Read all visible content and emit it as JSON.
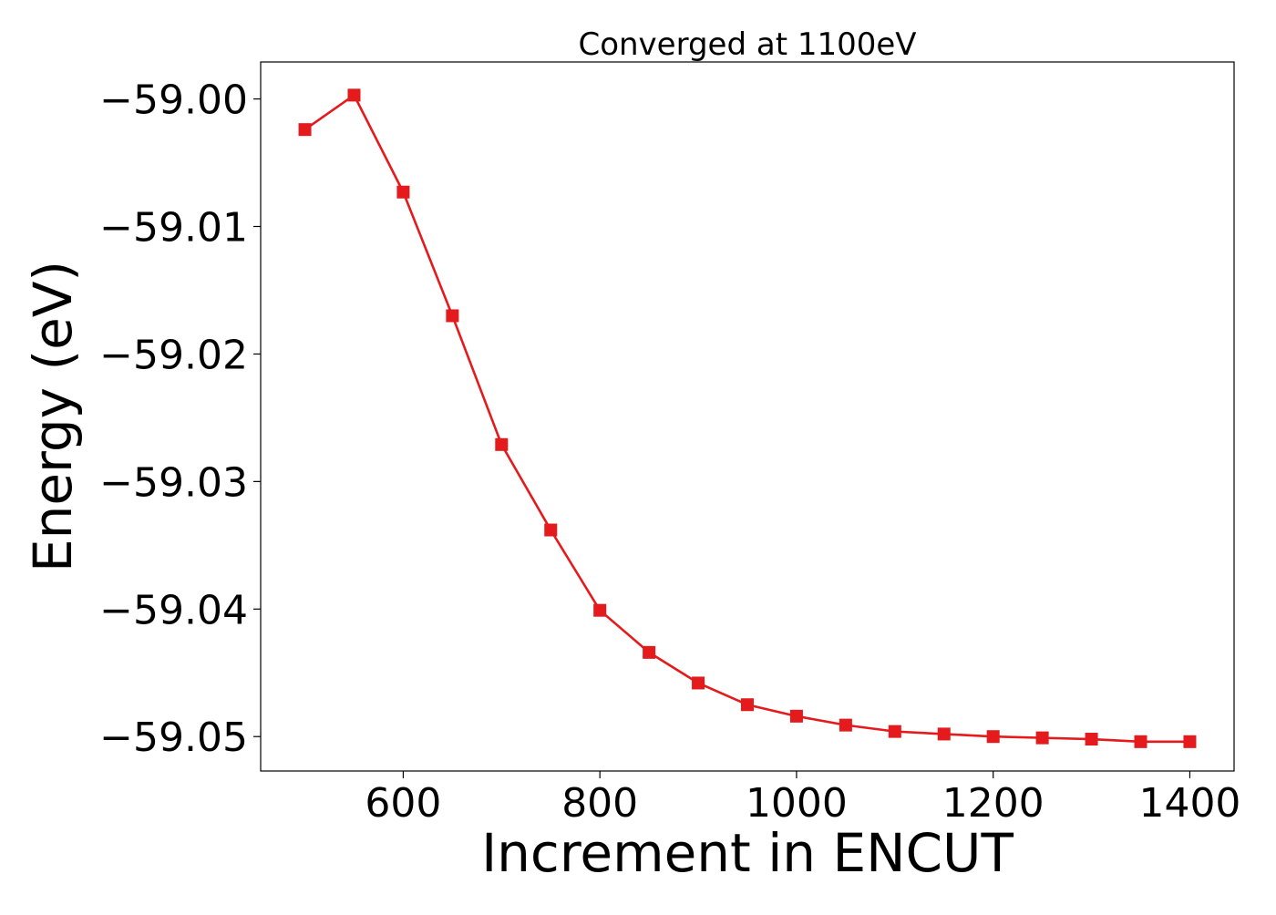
{
  "chart_data": {
    "type": "line",
    "title": "Converged at 1100eV",
    "xlabel": "Increment in ENCUT",
    "ylabel": "Energy (eV)",
    "xlim": [
      455,
      1445
    ],
    "ylim": [
      -59.0527,
      -58.9971
    ],
    "x_ticks": [
      600,
      800,
      1000,
      1200,
      1400
    ],
    "x_tick_labels": [
      "600",
      "800",
      "1000",
      "1200",
      "1400"
    ],
    "y_ticks": [
      -59.0,
      -59.01,
      -59.02,
      -59.03,
      -59.04,
      -59.05
    ],
    "y_tick_labels": [
      "−59.00",
      "−59.01",
      "−59.02",
      "−59.03",
      "−59.04",
      "−59.05"
    ],
    "grid": false,
    "series": [
      {
        "color": "#e41a1c",
        "marker": "square",
        "x": [
          500,
          550,
          600,
          650,
          700,
          750,
          800,
          850,
          900,
          950,
          1000,
          1050,
          1100,
          1150,
          1200,
          1250,
          1300,
          1350,
          1400
        ],
        "y": [
          -59.0024,
          -58.9997,
          -59.0073,
          -59.017,
          -59.0271,
          -59.0338,
          -59.0401,
          -59.0434,
          -59.0458,
          -59.0475,
          -59.0484,
          -59.0491,
          -59.0496,
          -59.0498,
          -59.05,
          -59.0501,
          -59.0502,
          -59.0504,
          -59.0504
        ]
      }
    ]
  }
}
